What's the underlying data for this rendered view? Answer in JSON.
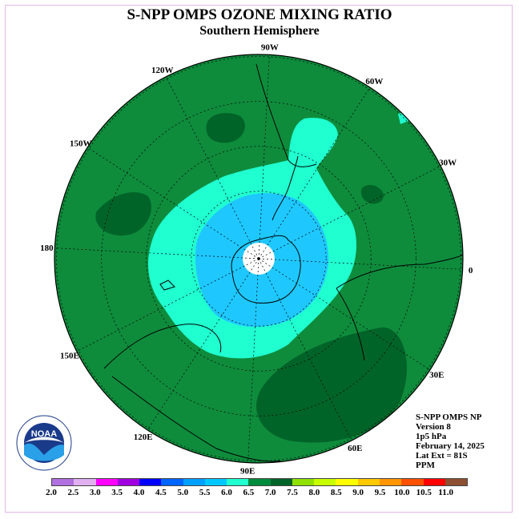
{
  "title": "S-NPP OMPS OZONE MIXING RATIO",
  "subtitle": "Southern Hemisphere",
  "info": {
    "line1": "S-NPP OMPS NP",
    "line2": "Version 8",
    "line3": "1p5 hPa",
    "line4": "February 14, 2025",
    "line5": "Lat Ext = 81S",
    "line6": "PPM"
  },
  "longitude_labels": [
    "90W",
    "60W",
    "30W",
    "0",
    "30E",
    "60E",
    "90E",
    "120E",
    "150E",
    "180",
    "150W",
    "120W"
  ],
  "colorbar": {
    "ticks": [
      "2.0",
      "2.5",
      "3.0",
      "3.5",
      "4.0",
      "4.5",
      "5.0",
      "5.5",
      "6.0",
      "6.5",
      "7.0",
      "7.5",
      "8.0",
      "8.5",
      "9.0",
      "9.5",
      "10.0",
      "10.5",
      "11.0"
    ],
    "colors": [
      "#b070e0",
      "#e0b0f0",
      "#ff00ff",
      "#a000e0",
      "#0000ff",
      "#0064ff",
      "#00a0ff",
      "#00c8ff",
      "#20ffd0",
      "#008c3c",
      "#006428",
      "#90e000",
      "#c8ff00",
      "#ffff00",
      "#ffc800",
      "#ff9600",
      "#ff5000",
      "#ff0000",
      "#8c5032"
    ]
  },
  "logo_text": "NOAA",
  "map_colors": {
    "green_base": "#0e8c3c",
    "dark_green": "#006428",
    "cyan": "#20ffd0",
    "blue": "#1ec8ff",
    "pole": "#ffffff"
  }
}
